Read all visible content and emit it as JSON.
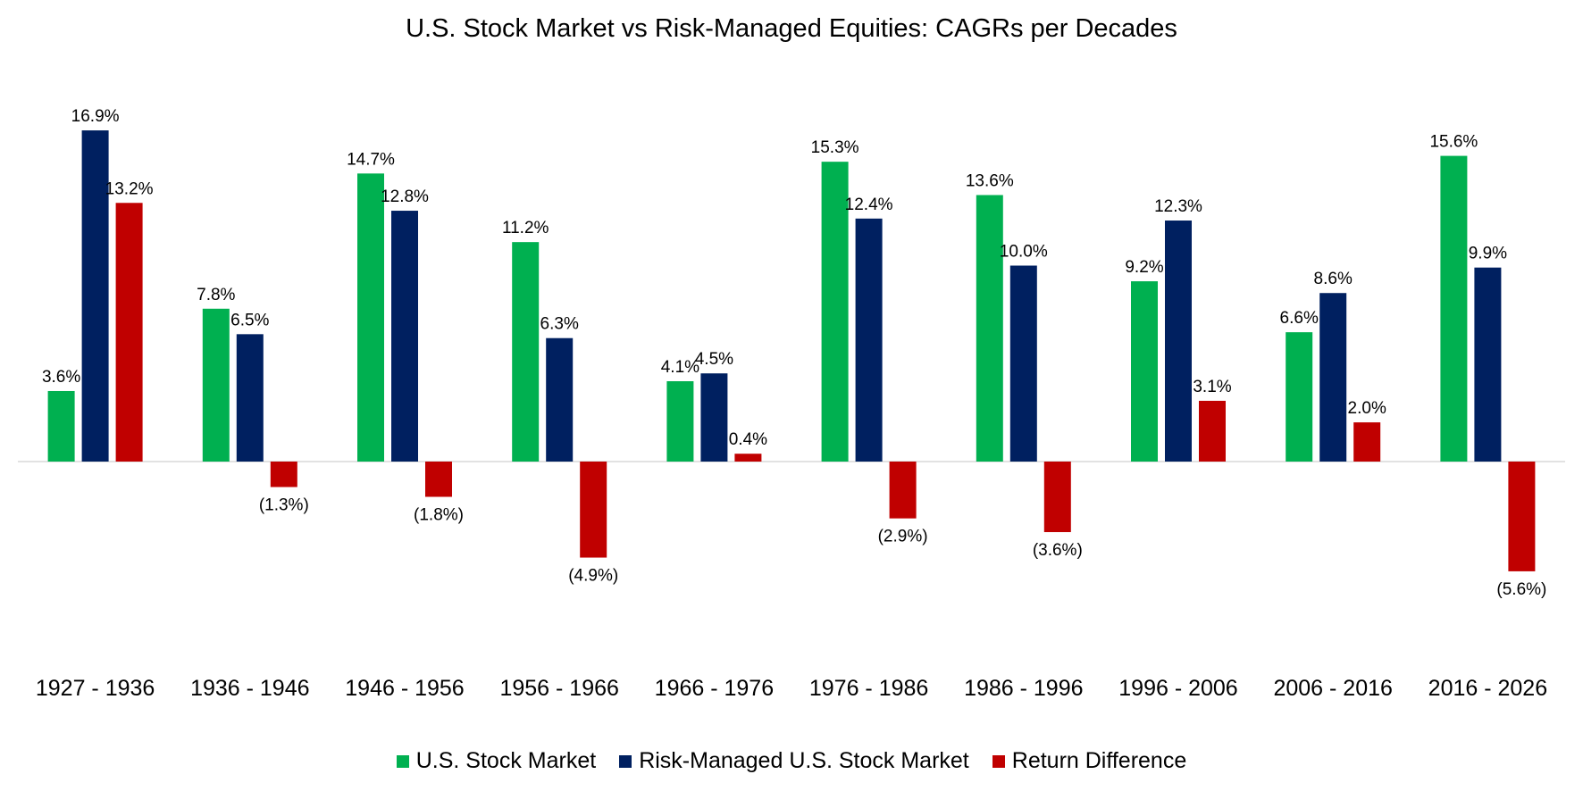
{
  "chart_data": {
    "type": "bar",
    "title": "U.S. Stock Market vs Risk-Managed Equities: CAGRs per Decades",
    "xlabel": "",
    "ylabel": "",
    "ylim": [
      -7,
      19
    ],
    "grid": false,
    "legend_position": "bottom",
    "categories": [
      "1927 - 1936",
      "1936 - 1946",
      "1946 - 1956",
      "1956 - 1966",
      "1966 - 1976",
      "1976 - 1986",
      "1986 - 1996",
      "1996 - 2006",
      "2006 - 2016",
      "2016 - 2026"
    ],
    "series": [
      {
        "name": "U.S. Stock Market",
        "color": "#00B050",
        "values": [
          3.6,
          7.8,
          14.7,
          11.2,
          4.1,
          15.3,
          13.6,
          9.2,
          6.6,
          15.6
        ],
        "labels": [
          "3.6%",
          "7.8%",
          "14.7%",
          "11.2%",
          "4.1%",
          "15.3%",
          "13.6%",
          "9.2%",
          "6.6%",
          "15.6%"
        ]
      },
      {
        "name": "Risk-Managed U.S. Stock Market",
        "color": "#002060",
        "values": [
          16.9,
          6.5,
          12.8,
          6.3,
          4.5,
          12.4,
          10.0,
          12.3,
          8.6,
          9.9
        ],
        "labels": [
          "16.9%",
          "6.5%",
          "12.8%",
          "6.3%",
          "4.5%",
          "12.4%",
          "10.0%",
          "12.3%",
          "8.6%",
          "9.9%"
        ]
      },
      {
        "name": "Return Difference",
        "color": "#C00000",
        "values": [
          13.2,
          -1.3,
          -1.8,
          -4.9,
          0.4,
          -2.9,
          -3.6,
          3.1,
          2.0,
          -5.6
        ],
        "labels": [
          "13.2%",
          "(1.3%)",
          "(1.8%)",
          "(4.9%)",
          "0.4%",
          "(2.9%)",
          "(3.6%)",
          "3.1%",
          "2.0%",
          "(5.6%)"
        ]
      }
    ],
    "axis_color": "#D9D9D9"
  }
}
